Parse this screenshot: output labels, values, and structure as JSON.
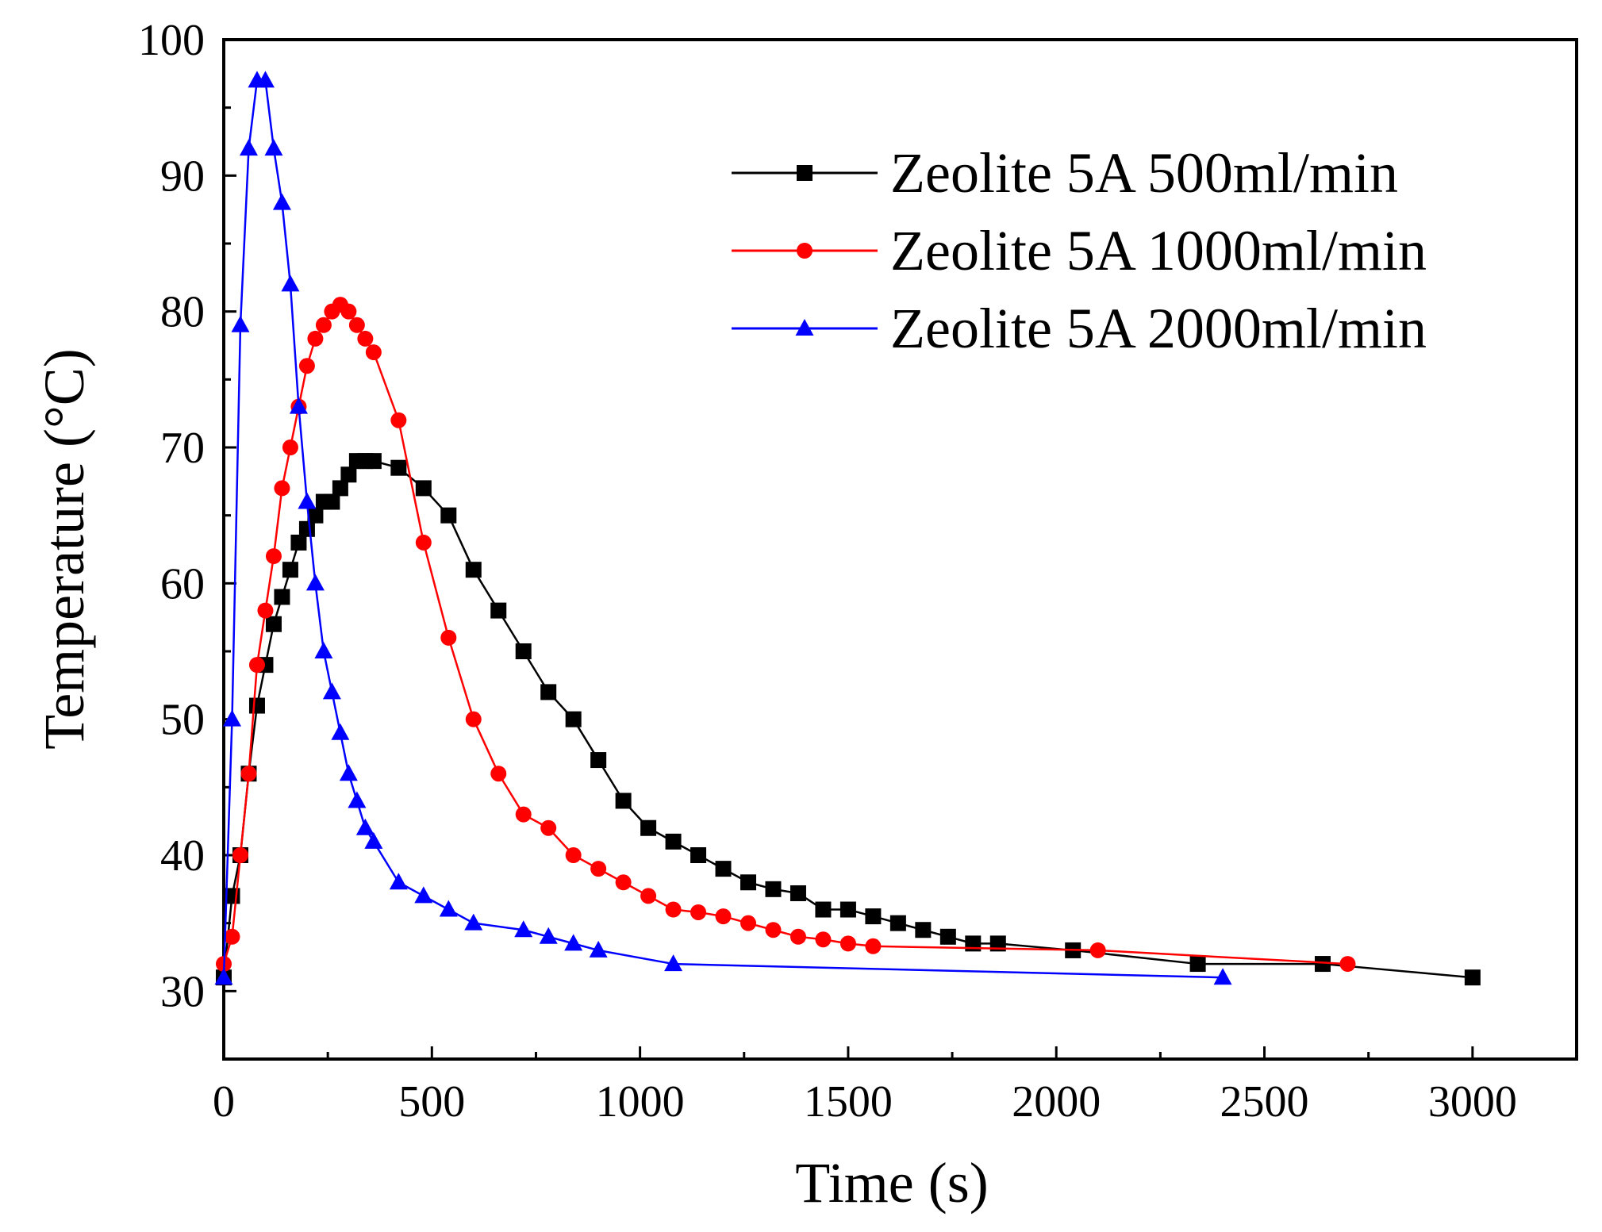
{
  "chart_data": {
    "type": "line",
    "title": "",
    "xlabel": "Time (s)",
    "ylabel": "Temperature (°C)",
    "xlim": [
      0,
      3250
    ],
    "ylim": [
      25,
      100
    ],
    "xticks": [
      0,
      500,
      1000,
      1500,
      2000,
      2500,
      3000
    ],
    "yticks": [
      30,
      40,
      50,
      60,
      70,
      80,
      90,
      100
    ],
    "grid": false,
    "legend_position": "top-right",
    "series": [
      {
        "name": "Zeolite 5A 500ml/min",
        "color": "#000000",
        "marker": "square",
        "x": [
          0,
          20,
          40,
          60,
          80,
          100,
          120,
          140,
          160,
          180,
          200,
          220,
          240,
          260,
          280,
          300,
          320,
          340,
          360,
          420,
          480,
          540,
          600,
          660,
          720,
          780,
          840,
          900,
          960,
          1020,
          1080,
          1140,
          1200,
          1260,
          1320,
          1380,
          1440,
          1500,
          1560,
          1620,
          1680,
          1740,
          1800,
          1860,
          2040,
          2340,
          2640,
          3000
        ],
        "y": [
          31,
          37,
          40,
          46,
          51,
          54,
          57,
          59,
          61,
          63,
          64,
          65,
          66,
          66,
          67,
          68,
          69,
          69,
          69,
          68.5,
          67,
          65,
          61,
          58,
          55,
          52,
          50,
          47,
          44,
          42,
          41,
          40,
          39,
          38,
          37.5,
          37.2,
          36,
          36,
          35.5,
          35,
          34.5,
          34,
          33.5,
          33.5,
          33,
          32,
          32,
          31
        ]
      },
      {
        "name": "Zeolite 5A 1000ml/min",
        "color": "#ff0000",
        "marker": "circle",
        "x": [
          0,
          20,
          40,
          60,
          80,
          100,
          120,
          140,
          160,
          180,
          200,
          220,
          240,
          260,
          280,
          300,
          320,
          340,
          360,
          420,
          480,
          540,
          600,
          660,
          720,
          780,
          840,
          900,
          960,
          1020,
          1080,
          1140,
          1200,
          1260,
          1320,
          1380,
          1440,
          1500,
          1560,
          2100,
          2700
        ],
        "y": [
          32,
          34,
          40,
          46,
          54,
          58,
          62,
          67,
          70,
          73,
          76,
          78,
          79,
          80,
          80.5,
          80,
          79,
          78,
          77,
          72,
          63,
          56,
          50,
          46,
          43,
          42,
          40,
          39,
          38,
          37,
          36,
          35.8,
          35.5,
          35,
          34.5,
          34,
          33.8,
          33.5,
          33.3,
          33,
          32
        ]
      },
      {
        "name": "Zeolite 5A 2000ml/min",
        "color": "#0000ff",
        "marker": "triangle",
        "x": [
          0,
          20,
          40,
          60,
          80,
          100,
          120,
          140,
          160,
          180,
          200,
          220,
          240,
          260,
          280,
          300,
          320,
          340,
          360,
          420,
          480,
          540,
          600,
          720,
          780,
          840,
          900,
          1080,
          2400
        ],
        "y": [
          31,
          50,
          79,
          92,
          97,
          97,
          92,
          88,
          82,
          73,
          66,
          60,
          55,
          52,
          49,
          46,
          44,
          42,
          41,
          38,
          37,
          36,
          35,
          34.5,
          34,
          33.5,
          33,
          32,
          31
        ]
      }
    ]
  }
}
